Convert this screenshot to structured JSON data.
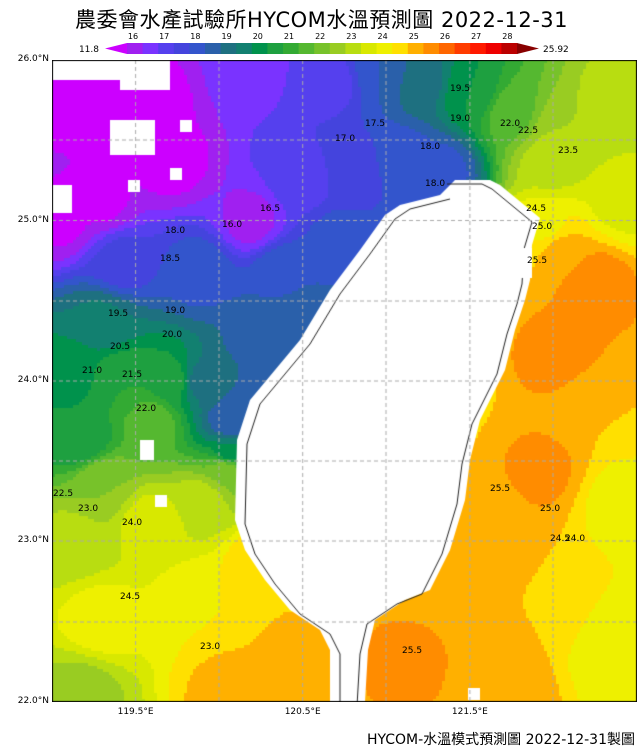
{
  "title": "農委會水產試驗所HYCOM水溫預測圖 2022-12-31",
  "colorbar": {
    "min_label": "11.8",
    "max_label": "25.92",
    "tick_labels": [
      "16",
      "17",
      "18",
      "19",
      "20",
      "21",
      "22",
      "23",
      "24",
      "25",
      "26",
      "27",
      "28"
    ],
    "colors": [
      "#cc00ff",
      "#a020f0",
      "#7a33ff",
      "#5540ee",
      "#4444dd",
      "#3355cc",
      "#2a60aa",
      "#1e7080",
      "#128070",
      "#00924c",
      "#1ea040",
      "#33aa33",
      "#55b830",
      "#77c22a",
      "#99cc22",
      "#b8dd11",
      "#d8e800",
      "#eef000",
      "#ffe000",
      "#ffb000",
      "#ff8c00",
      "#ff6600",
      "#ff3c00",
      "#ff1a00",
      "#ee0000",
      "#bb0000",
      "#880000"
    ]
  },
  "map": {
    "lat_labels": [
      "26.0°N",
      "25.0°N",
      "24.0°N",
      "23.0°N",
      "22.0°N"
    ],
    "lon_labels": [
      "119.5°E",
      "120.5°E",
      "121.5°E"
    ],
    "land_color": "#ffffff",
    "contour_labels": [
      "19.5",
      "19.0",
      "22.0",
      "22.5",
      "17.5",
      "17.0",
      "18.0",
      "23.5",
      "18.0",
      "16.0",
      "16.5",
      "24.5",
      "25.0",
      "25.5",
      "18.0",
      "18.5",
      "19.0",
      "19.5",
      "20.0",
      "20.5",
      "21.0",
      "21.5",
      "22.0",
      "22.5",
      "23.0",
      "24.0",
      "24.5",
      "23.0",
      "25.5",
      "25.0",
      "24.5",
      "24.0",
      "25.5"
    ]
  },
  "footer": "HYCOM-水溫模式預測圖 2022-12-31製圖"
}
